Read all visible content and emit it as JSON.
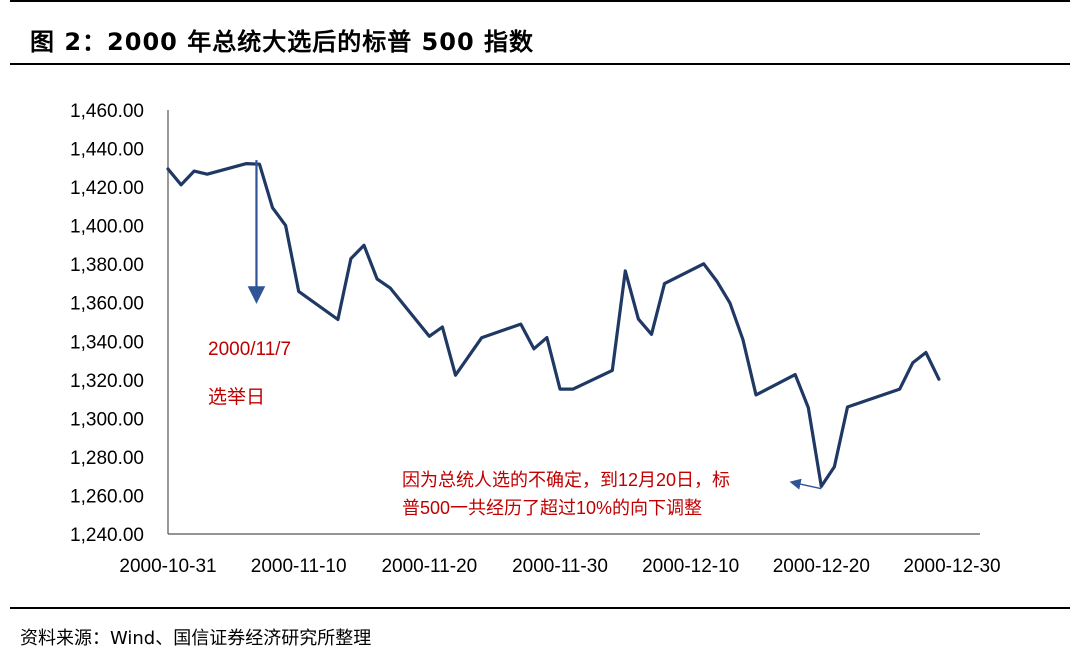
{
  "figure": {
    "title": "图 2：2000 年总统大选后的标普 500 指数",
    "source": "资料来源：Wind、国信证券经济研究所整理"
  },
  "chart_data": {
    "type": "line",
    "title": "",
    "xlabel": "",
    "ylabel": "",
    "ylim": [
      1240,
      1460
    ],
    "y_ticks": [
      "1,240.00",
      "1,260.00",
      "1,280.00",
      "1,300.00",
      "1,320.00",
      "1,340.00",
      "1,360.00",
      "1,380.00",
      "1,400.00",
      "1,420.00",
      "1,440.00",
      "1,460.00"
    ],
    "x_ticks": [
      "2000-10-31",
      "2000-11-10",
      "2000-11-20",
      "2000-11-30",
      "2000-12-10",
      "2000-12-20",
      "2000-12-30"
    ],
    "grid": false,
    "legend": "none",
    "colors": {
      "line": "#1f3864",
      "annotation_text": "#c00000",
      "arrow": "#2f5597"
    },
    "series": [
      {
        "x": [
          "2000-10-31",
          "2000-11-01",
          "2000-11-02",
          "2000-11-03",
          "2000-11-06",
          "2000-11-07",
          "2000-11-08",
          "2000-11-09",
          "2000-11-10",
          "2000-11-13",
          "2000-11-14",
          "2000-11-15",
          "2000-11-16",
          "2000-11-17",
          "2000-11-20",
          "2000-11-21",
          "2000-11-22",
          "2000-11-24",
          "2000-11-27",
          "2000-11-28",
          "2000-11-29",
          "2000-11-30",
          "2000-12-01",
          "2000-12-04",
          "2000-12-05",
          "2000-12-06",
          "2000-12-07",
          "2000-12-08",
          "2000-12-11",
          "2000-12-12",
          "2000-12-13",
          "2000-12-14",
          "2000-12-15",
          "2000-12-18",
          "2000-12-19",
          "2000-12-20",
          "2000-12-21",
          "2000-12-22",
          "2000-12-26",
          "2000-12-27",
          "2000-12-28",
          "2000-12-29"
        ],
        "values": [
          1429.4,
          1421.2,
          1428.3,
          1426.7,
          1432.2,
          1431.9,
          1409.3,
          1400.1,
          1365.9,
          1351.3,
          1382.9,
          1389.8,
          1372.3,
          1367.7,
          1342.6,
          1347.4,
          1322.4,
          1341.8,
          1348.9,
          1336.1,
          1341.9,
          1315.2,
          1315.2,
          1324.9,
          1376.5,
          1351.5,
          1343.6,
          1369.9,
          1380.2,
          1371.2,
          1359.9,
          1340.9,
          1312.2,
          1322.7,
          1305.6,
          1264.7,
          1274.9,
          1305.9,
          1315.2,
          1328.9,
          1334.2,
          1320.3
        ]
      }
    ],
    "annotations": [
      {
        "date": "2000-11-07",
        "lines": [
          "2000/11/7",
          "选举日"
        ]
      },
      {
        "date": "2000-12-20",
        "lines": [
          "因为总统人选的不确定，到12月20日，标",
          "普500一共经历了超过10%的向下调整"
        ]
      }
    ]
  }
}
